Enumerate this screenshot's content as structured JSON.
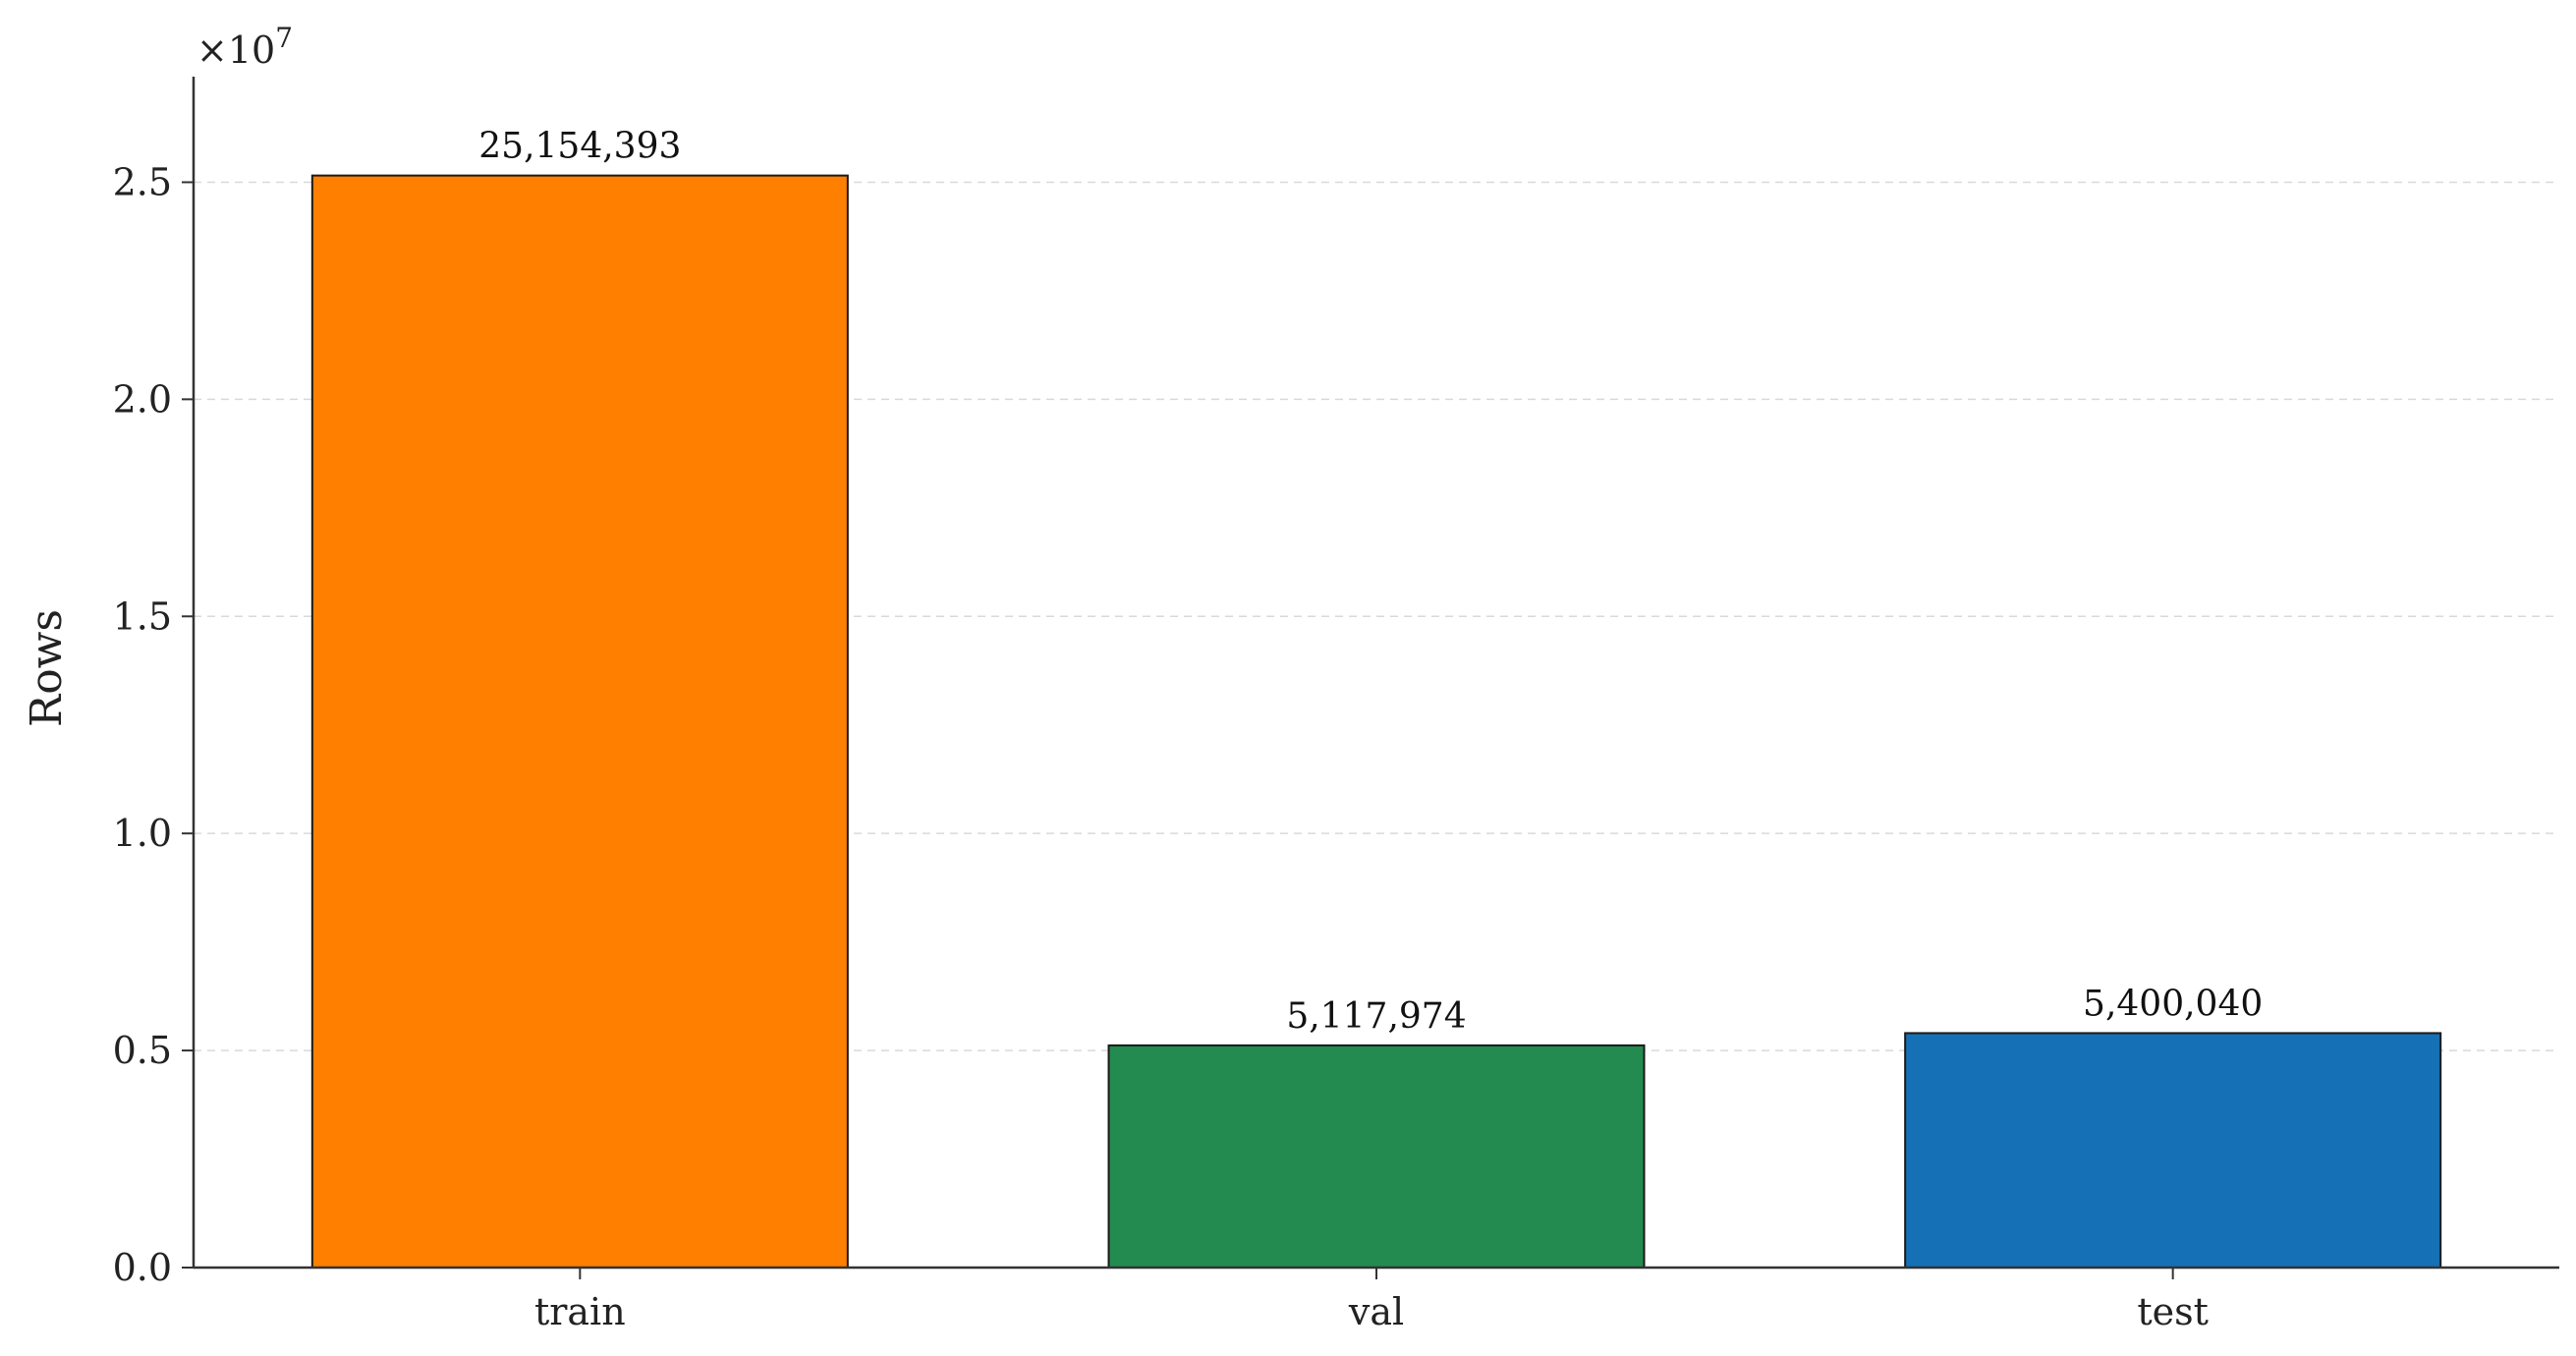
{
  "chart_data": {
    "type": "bar",
    "categories": [
      "train",
      "val",
      "test"
    ],
    "values": [
      25154393,
      5117974,
      5400040
    ],
    "value_labels": [
      "25,154,393",
      "5,117,974",
      "5,400,040"
    ],
    "colors": [
      "#ff7f00",
      "#238b4f",
      "#1570b5"
    ],
    "title": "",
    "xlabel": "",
    "ylabel": "Rows",
    "ylim": [
      0,
      27500000
    ],
    "yticks": [
      0,
      5000000,
      10000000,
      15000000,
      20000000,
      25000000
    ],
    "ytick_labels": [
      "0.0",
      "0.5",
      "1.0",
      "1.5",
      "2.0",
      "2.5"
    ],
    "y_offset_text": {
      "base": "×10",
      "exponent": "7"
    },
    "grid": "y-dashed",
    "legend": "none"
  }
}
